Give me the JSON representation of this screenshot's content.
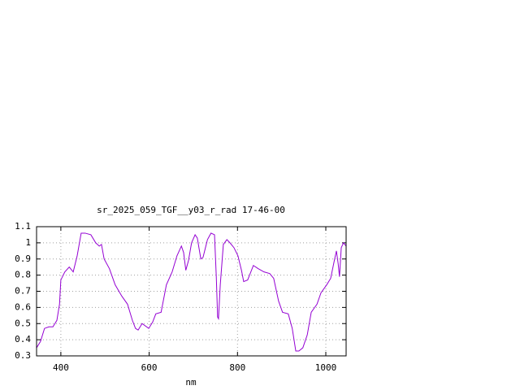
{
  "chart_data": {
    "type": "line",
    "title": "sr_2025_059_TGF__y03_r_rad 17-46-00",
    "xlabel": "nm",
    "color": "#9400d3",
    "grid": true,
    "xlim": [
      345,
      1046
    ],
    "ylim": [
      0.3,
      1.1
    ],
    "xticks": [
      400,
      600,
      800,
      1000
    ],
    "yticks": [
      0.3,
      0.4,
      0.5,
      0.6,
      0.7,
      0.8,
      0.9,
      1,
      1.1
    ],
    "x": [
      345,
      354,
      363,
      373,
      382,
      391,
      397,
      400,
      409,
      419,
      428,
      437,
      446,
      455,
      468,
      479,
      487,
      492,
      498,
      510,
      523,
      538,
      551,
      562,
      569,
      575,
      584,
      599,
      608,
      615,
      627,
      639,
      652,
      663,
      673,
      678,
      683,
      689,
      696,
      704,
      709,
      717,
      722,
      732,
      740,
      748,
      752,
      755,
      757,
      761,
      768,
      776,
      783,
      792,
      801,
      809,
      814,
      823,
      836,
      847,
      860,
      873,
      882,
      893,
      902,
      915,
      924,
      932,
      939,
      948,
      958,
      967,
      980,
      989,
      1002,
      1011,
      1020,
      1024,
      1028,
      1031,
      1035,
      1040,
      1046
    ],
    "values": [
      0.35,
      0.39,
      0.47,
      0.48,
      0.48,
      0.52,
      0.62,
      0.77,
      0.82,
      0.85,
      0.82,
      0.92,
      1.06,
      1.06,
      1.05,
      1.0,
      0.98,
      0.99,
      0.9,
      0.84,
      0.74,
      0.67,
      0.62,
      0.52,
      0.47,
      0.46,
      0.5,
      0.47,
      0.51,
      0.56,
      0.57,
      0.74,
      0.82,
      0.92,
      0.98,
      0.94,
      0.83,
      0.89,
      1.0,
      1.05,
      1.03,
      0.9,
      0.91,
      1.02,
      1.06,
      1.05,
      0.79,
      0.54,
      0.53,
      0.74,
      0.99,
      1.02,
      1.0,
      0.97,
      0.92,
      0.83,
      0.76,
      0.77,
      0.86,
      0.84,
      0.82,
      0.81,
      0.78,
      0.64,
      0.57,
      0.56,
      0.47,
      0.33,
      0.33,
      0.35,
      0.43,
      0.57,
      0.62,
      0.69,
      0.74,
      0.78,
      0.9,
      0.95,
      0.87,
      0.79,
      0.97,
      1.0,
      0.98
    ]
  }
}
